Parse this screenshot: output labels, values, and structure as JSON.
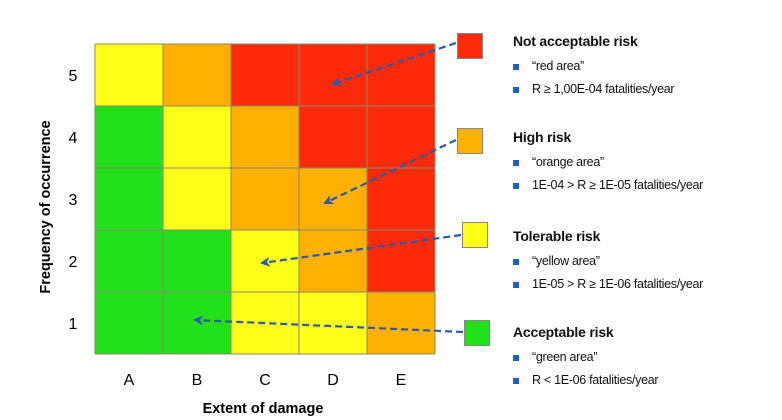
{
  "axes": {
    "ylabel": "Frequency of occurrence",
    "xlabel": "Extent of damage",
    "y_ticks": [
      "5",
      "4",
      "3",
      "2",
      "1"
    ],
    "x_ticks": [
      "A",
      "B",
      "C",
      "D",
      "E"
    ]
  },
  "matrix": {
    "rows": [
      [
        "yellow",
        "orange",
        "red",
        "red",
        "red"
      ],
      [
        "green",
        "yellow",
        "orange",
        "red",
        "red"
      ],
      [
        "green",
        "yellow",
        "orange",
        "orange",
        "red"
      ],
      [
        "green",
        "green",
        "yellow",
        "orange",
        "red"
      ],
      [
        "green",
        "green",
        "yellow",
        "yellow",
        "orange"
      ]
    ]
  },
  "colors": {
    "red": "#ff2a0a",
    "orange": "#ffb000",
    "yellow": "#ffff1a",
    "green": "#22e01a",
    "arrow": "#2b5aa8",
    "grid": "#8a8a6a"
  },
  "legend": [
    {
      "level": "red",
      "title": "Not acceptable risk",
      "bullets": [
        "“red area”",
        "R ≥ 1,00E-04 fatalities/year"
      ]
    },
    {
      "level": "orange",
      "title": "High risk",
      "bullets": [
        "“orange area”",
        "1E-04 > R ≥ 1E-05 fatalities/year"
      ]
    },
    {
      "level": "yellow",
      "title": "Tolerable risk",
      "bullets": [
        "“yellow area”",
        "1E-05 > R ≥ 1E-06 fatalities/year"
      ]
    },
    {
      "level": "green",
      "title": "Acceptable risk",
      "bullets": [
        "“green area”",
        "R < 1E-06 fatalities/year"
      ]
    }
  ]
}
